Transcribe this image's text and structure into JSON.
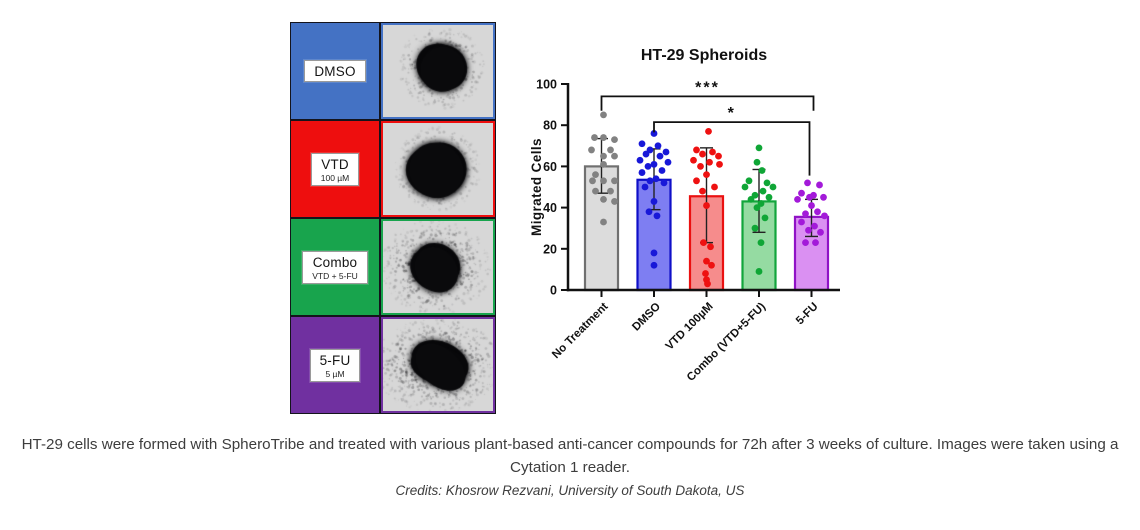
{
  "panel": {
    "rows": [
      {
        "label": "DMSO",
        "sublabel": "",
        "color": "#4472c4"
      },
      {
        "label": "VTD",
        "sublabel": "100 µM",
        "color": "#ee0e0e"
      },
      {
        "label": "Combo",
        "sublabel": "VTD + 5-FU",
        "color": "#18a44d"
      },
      {
        "label": "5-FU",
        "sublabel": "5 µM",
        "color": "#7030a0"
      }
    ]
  },
  "chart_data": {
    "type": "bar",
    "title": "HT-29 Spheroids",
    "ylabel": "Migrated Cells",
    "xlabel": "",
    "ylim": [
      0,
      100
    ],
    "yticks": [
      0,
      20,
      40,
      60,
      80,
      100
    ],
    "legend": "none",
    "grid": false,
    "categories": [
      "No Treatment",
      "DMSO",
      "VTD 100µM",
      "Combo (VTD+5-FU)",
      "5-FU"
    ],
    "groups": [
      {
        "name": "No Treatment",
        "mean": 60,
        "err_low": 47,
        "err_high": 73.5,
        "fill": "#dcdcdc",
        "stroke": "#707070",
        "point_color": "#828282",
        "points": [
          [
            85,
            2
          ],
          [
            74,
            -7
          ],
          [
            74,
            2
          ],
          [
            73,
            13
          ],
          [
            68,
            -10
          ],
          [
            68,
            9
          ],
          [
            65,
            2
          ],
          [
            65,
            13
          ],
          [
            61,
            2
          ],
          [
            56,
            -6
          ],
          [
            53,
            -9
          ],
          [
            53,
            2
          ],
          [
            53,
            13
          ],
          [
            48,
            -6
          ],
          [
            48,
            9
          ],
          [
            44,
            2
          ],
          [
            43,
            13
          ],
          [
            33,
            2
          ]
        ]
      },
      {
        "name": "DMSO",
        "mean": 53.5,
        "err_low": 39,
        "err_high": 68.5,
        "fill": "#7e7ef2",
        "stroke": "#0f0fc8",
        "point_color": "#1818d8",
        "points": [
          [
            76,
            0
          ],
          [
            71,
            -12
          ],
          [
            70,
            4
          ],
          [
            68,
            -4
          ],
          [
            67,
            12
          ],
          [
            66,
            -8
          ],
          [
            65,
            6
          ],
          [
            63,
            -14
          ],
          [
            62,
            14
          ],
          [
            61,
            0
          ],
          [
            60,
            -6
          ],
          [
            58,
            8
          ],
          [
            57,
            -12
          ],
          [
            54,
            2
          ],
          [
            53,
            -4
          ],
          [
            52,
            10
          ],
          [
            50,
            -9
          ],
          [
            43,
            0
          ],
          [
            38,
            -5
          ],
          [
            36,
            3
          ],
          [
            18,
            0
          ],
          [
            12,
            0
          ]
        ]
      },
      {
        "name": "VTD 100µM",
        "mean": 45.5,
        "err_low": 23,
        "err_high": 69,
        "fill": "#f68c8c",
        "stroke": "#ea1010",
        "point_color": "#ee1111",
        "points": [
          [
            77,
            2
          ],
          [
            68,
            -10
          ],
          [
            67,
            6
          ],
          [
            66,
            -4
          ],
          [
            65,
            12
          ],
          [
            63,
            -13
          ],
          [
            62,
            3
          ],
          [
            61,
            13
          ],
          [
            60,
            -6
          ],
          [
            56,
            0
          ],
          [
            53,
            -10
          ],
          [
            50,
            8
          ],
          [
            48,
            -4
          ],
          [
            41,
            0
          ],
          [
            23,
            -3
          ],
          [
            21,
            4
          ],
          [
            14,
            0
          ],
          [
            12,
            5
          ],
          [
            8,
            -1
          ],
          [
            5,
            0
          ],
          [
            3,
            1
          ]
        ]
      },
      {
        "name": "Combo (VTD+5-FU)",
        "mean": 43,
        "err_low": 28,
        "err_high": 58.5,
        "fill": "#95dba2",
        "stroke": "#12a53c",
        "point_color": "#0fa636",
        "points": [
          [
            69,
            0
          ],
          [
            62,
            -2
          ],
          [
            58,
            3
          ],
          [
            53,
            -10
          ],
          [
            52,
            8
          ],
          [
            50,
            -14
          ],
          [
            50,
            14
          ],
          [
            48,
            4
          ],
          [
            46,
            -4
          ],
          [
            45,
            10
          ],
          [
            44,
            -8
          ],
          [
            42,
            2
          ],
          [
            40,
            -2
          ],
          [
            35,
            6
          ],
          [
            30,
            -4
          ],
          [
            23,
            2
          ],
          [
            9,
            0
          ]
        ]
      },
      {
        "name": "5-FU",
        "mean": 35.5,
        "err_low": 26,
        "err_high": 44,
        "fill": "#da90f2",
        "stroke": "#9012c6",
        "point_color": "#a31ad9",
        "points": [
          [
            52,
            -4
          ],
          [
            51,
            8
          ],
          [
            47,
            -10
          ],
          [
            46,
            2
          ],
          [
            45,
            -2
          ],
          [
            45,
            12
          ],
          [
            44,
            -14
          ],
          [
            41,
            0
          ],
          [
            38,
            6
          ],
          [
            37,
            -6
          ],
          [
            36,
            13
          ],
          [
            33,
            -10
          ],
          [
            31,
            3
          ],
          [
            29,
            -3
          ],
          [
            28,
            9
          ],
          [
            23,
            -6
          ],
          [
            23,
            4
          ]
        ]
      }
    ],
    "significance": [
      {
        "label": "***",
        "from": 0,
        "to": 4,
        "value": 94,
        "drop_from": 7,
        "drop_to": 7,
        "end_offset": 2
      },
      {
        "label": "*",
        "from": 1,
        "to": 4,
        "value": 81.5,
        "drop_from": 5,
        "drop_to": 26,
        "end_offset": -2
      }
    ]
  },
  "caption": {
    "text": "HT-29 cells were formed with SpheroTribe and treated with various plant-based anti-cancer compounds for 72h after 3 weeks of culture. Images were taken using a Cytation 1 reader.",
    "credits": "Credits: Khosrow Rezvani, University of South Dakota, US"
  }
}
